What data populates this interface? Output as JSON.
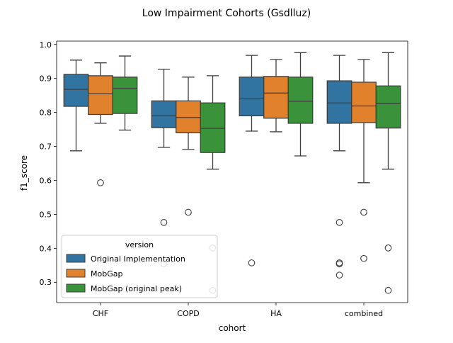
{
  "chart_data": {
    "type": "box",
    "title": "Low Impairment Cohorts (Gsdlluz)",
    "xlabel": "cohort",
    "ylabel": "f1_score",
    "categories": [
      "CHF",
      "COPD",
      "HA",
      "combined"
    ],
    "ylim": [
      0.24,
      1.01
    ],
    "yticks": [
      0.3,
      0.4,
      0.5,
      0.6,
      0.7,
      0.8,
      0.9,
      1.0
    ],
    "ytick_labels": [
      "0.3",
      "0.4",
      "0.5",
      "0.6",
      "0.7",
      "0.8",
      "0.9",
      "1.0"
    ],
    "grid": false,
    "legend": {
      "title": "version",
      "placement": "lower-left"
    },
    "series": [
      {
        "name": "Original Implementation",
        "color": "#3274a1",
        "boxes": [
          {
            "whisker_low": 0.687,
            "q1": 0.818,
            "median": 0.868,
            "q3": 0.912,
            "whisker_high": 0.954,
            "outliers": []
          },
          {
            "whisker_low": 0.697,
            "q1": 0.755,
            "median": 0.79,
            "q3": 0.834,
            "whisker_high": 0.927,
            "outliers": [
              0.476,
              0.354
            ]
          },
          {
            "whisker_low": 0.745,
            "q1": 0.79,
            "median": 0.84,
            "q3": 0.904,
            "whisker_high": 0.968,
            "outliers": [
              0.357
            ]
          },
          {
            "whisker_low": 0.687,
            "q1": 0.768,
            "median": 0.828,
            "q3": 0.893,
            "whisker_high": 0.968,
            "outliers": [
              0.476,
              0.357,
              0.354,
              0.321
            ]
          }
        ]
      },
      {
        "name": "MobGap",
        "color": "#e1812c",
        "boxes": [
          {
            "whisker_low": 0.768,
            "q1": 0.794,
            "median": 0.855,
            "q3": 0.908,
            "whisker_high": 0.946,
            "outliers": [
              0.593
            ]
          },
          {
            "whisker_low": 0.691,
            "q1": 0.74,
            "median": 0.785,
            "q3": 0.834,
            "whisker_high": 0.904,
            "outliers": [
              0.506
            ]
          },
          {
            "whisker_low": 0.743,
            "q1": 0.783,
            "median": 0.857,
            "q3": 0.906,
            "whisker_high": 0.956,
            "outliers": []
          },
          {
            "whisker_low": 0.593,
            "q1": 0.77,
            "median": 0.819,
            "q3": 0.889,
            "whisker_high": 0.956,
            "outliers": [
              0.506,
              0.37
            ]
          }
        ]
      },
      {
        "name": "MobGap (original peak)",
        "color": "#3a923a",
        "boxes": [
          {
            "whisker_low": 0.748,
            "q1": 0.797,
            "median": 0.871,
            "q3": 0.904,
            "whisker_high": 0.966,
            "outliers": []
          },
          {
            "whisker_low": 0.633,
            "q1": 0.682,
            "median": 0.753,
            "q3": 0.828,
            "whisker_high": 0.908,
            "outliers": [
              0.401,
              0.276
            ]
          },
          {
            "whisker_low": 0.672,
            "q1": 0.768,
            "median": 0.833,
            "q3": 0.904,
            "whisker_high": 0.976,
            "outliers": []
          },
          {
            "whisker_low": 0.633,
            "q1": 0.754,
            "median": 0.826,
            "q3": 0.878,
            "whisker_high": 0.976,
            "outliers": [
              0.401,
              0.276
            ]
          }
        ]
      }
    ]
  }
}
